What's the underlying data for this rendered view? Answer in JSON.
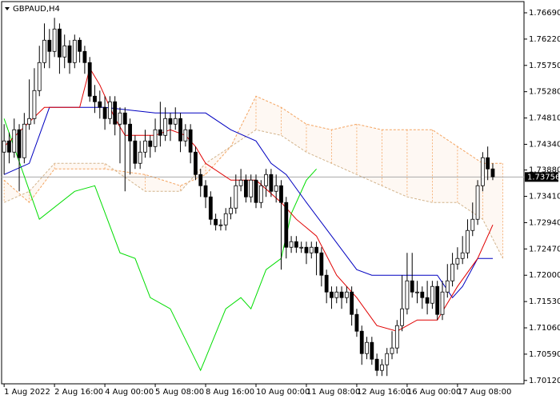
{
  "chart_data": {
    "type": "candlestick",
    "title": "GBPAUD,H4",
    "xlim": [
      -0.5,
      103.2
    ],
    "ylim": [
      1.7006,
      1.7689
    ],
    "yticks": [
      {
        "value": 1.7669,
        "label": "1.76690"
      },
      {
        "value": 1.7622,
        "label": "1.76220"
      },
      {
        "value": 1.7575,
        "label": "1.75750"
      },
      {
        "value": 1.7528,
        "label": "1.75280"
      },
      {
        "value": 1.7481,
        "label": "1.74810"
      },
      {
        "value": 1.7434,
        "label": "1.74340"
      },
      {
        "value": 1.7388,
        "label": "1.73880"
      },
      {
        "value": 1.7341,
        "label": "1.73410"
      },
      {
        "value": 1.7294,
        "label": "1.72940"
      },
      {
        "value": 1.7247,
        "label": "1.72470"
      },
      {
        "value": 1.72,
        "label": "1.72000"
      },
      {
        "value": 1.7153,
        "label": "1.71530"
      },
      {
        "value": 1.7106,
        "label": "1.71060"
      },
      {
        "value": 1.7059,
        "label": "1.70590"
      },
      {
        "value": 1.7012,
        "label": "1.70120"
      }
    ],
    "xticks": [
      {
        "value": 0,
        "label": "1 Aug 2022"
      },
      {
        "value": 10,
        "label": "2 Aug 16:00"
      },
      {
        "value": 20,
        "label": "4 Aug 00:00"
      },
      {
        "value": 30,
        "label": "5 Aug 08:00"
      },
      {
        "value": 40,
        "label": "8 Aug 16:00"
      },
      {
        "value": 50,
        "label": "10 Aug 00:00"
      },
      {
        "value": 60,
        "label": "11 Aug 08:00"
      },
      {
        "value": 70,
        "label": "12 Aug 16:00"
      },
      {
        "value": 80,
        "label": "16 Aug 00:00"
      },
      {
        "value": 90,
        "label": "17 Aug 08:00"
      }
    ],
    "last_price": {
      "value": 1.73756,
      "label": "1.73756"
    },
    "candles": {
      "open": [
        1.742,
        1.744,
        1.742,
        1.746,
        1.741,
        1.747,
        1.748,
        1.753,
        1.758,
        1.762,
        1.76,
        1.764,
        1.759,
        1.761,
        1.758,
        1.762,
        1.76,
        1.758,
        1.752,
        1.751,
        1.75,
        1.748,
        1.751,
        1.747,
        1.749,
        1.747,
        1.744,
        1.74,
        1.742,
        1.744,
        1.743,
        1.746,
        1.745,
        1.748,
        1.747,
        1.748,
        1.744,
        1.746,
        1.742,
        1.738,
        1.736,
        1.734,
        1.73,
        1.729,
        1.729,
        1.731,
        1.732,
        1.736,
        1.737,
        1.734,
        1.737,
        1.733,
        1.736,
        1.738,
        1.735,
        1.736,
        1.733,
        1.725,
        1.726,
        1.725,
        1.725,
        1.724,
        1.725,
        1.724,
        1.72,
        1.717,
        1.716,
        1.717,
        1.716,
        1.717,
        1.713,
        1.71,
        1.706,
        1.708,
        1.705,
        1.703,
        1.704,
        1.706,
        1.707,
        1.711,
        1.714,
        1.719,
        1.717,
        1.717,
        1.716,
        1.715,
        1.718,
        1.713,
        1.717,
        1.719,
        1.722,
        1.723,
        1.724,
        1.728,
        1.73,
        1.736,
        1.741,
        1.739
      ],
      "high": [
        1.747,
        1.7455,
        1.748,
        1.747,
        1.749,
        1.755,
        1.757,
        1.761,
        1.765,
        1.764,
        1.766,
        1.765,
        1.763,
        1.762,
        1.763,
        1.7625,
        1.761,
        1.759,
        1.754,
        1.753,
        1.752,
        1.752,
        1.752,
        1.75,
        1.75,
        1.748,
        1.745,
        1.744,
        1.746,
        1.745,
        1.748,
        1.751,
        1.75,
        1.749,
        1.75,
        1.749,
        1.747,
        1.747,
        1.743,
        1.739,
        1.737,
        1.735,
        1.731,
        1.73,
        1.732,
        1.734,
        1.738,
        1.739,
        1.738,
        1.738,
        1.738,
        1.737,
        1.739,
        1.739,
        1.738,
        1.737,
        1.734,
        1.727,
        1.727,
        1.726,
        1.726,
        1.726,
        1.726,
        1.725,
        1.721,
        1.718,
        1.718,
        1.718,
        1.718,
        1.718,
        1.714,
        1.711,
        1.709,
        1.709,
        1.706,
        1.705,
        1.707,
        1.71,
        1.712,
        1.72,
        1.724,
        1.724,
        1.719,
        1.718,
        1.719,
        1.719,
        1.719,
        1.719,
        1.722,
        1.724,
        1.725,
        1.727,
        1.73,
        1.733,
        1.737,
        1.742,
        1.743,
        1.74
      ],
      "low": [
        1.738,
        1.74,
        1.741,
        1.735,
        1.74,
        1.746,
        1.747,
        1.752,
        1.757,
        1.757,
        1.759,
        1.756,
        1.757,
        1.756,
        1.757,
        1.758,
        1.756,
        1.751,
        1.749,
        1.748,
        1.746,
        1.747,
        1.745,
        1.74,
        1.735,
        1.738,
        1.739,
        1.739,
        1.741,
        1.741,
        1.742,
        1.743,
        1.744,
        1.744,
        1.746,
        1.742,
        1.743,
        1.74,
        1.737,
        1.734,
        1.732,
        1.729,
        1.728,
        1.728,
        1.728,
        1.73,
        1.731,
        1.735,
        1.733,
        1.733,
        1.732,
        1.732,
        1.734,
        1.734,
        1.733,
        1.721,
        1.723,
        1.724,
        1.724,
        1.724,
        1.722,
        1.723,
        1.72,
        1.718,
        1.715,
        1.714,
        1.715,
        1.714,
        1.715,
        1.711,
        1.709,
        1.704,
        1.705,
        1.704,
        1.702,
        1.702,
        1.702,
        1.705,
        1.706,
        1.71,
        1.713,
        1.716,
        1.715,
        1.714,
        1.713,
        1.714,
        1.712,
        1.712,
        1.716,
        1.718,
        1.721,
        1.722,
        1.723,
        1.727,
        1.729,
        1.735,
        1.737,
        1.737
      ],
      "close": [
        1.744,
        1.742,
        1.746,
        1.741,
        1.747,
        1.748,
        1.753,
        1.758,
        1.762,
        1.76,
        1.764,
        1.759,
        1.761,
        1.758,
        1.762,
        1.76,
        1.758,
        1.752,
        1.751,
        1.75,
        1.748,
        1.751,
        1.747,
        1.749,
        1.747,
        1.744,
        1.74,
        1.742,
        1.744,
        1.743,
        1.746,
        1.745,
        1.748,
        1.747,
        1.748,
        1.744,
        1.746,
        1.742,
        1.738,
        1.736,
        1.734,
        1.73,
        1.729,
        1.729,
        1.731,
        1.732,
        1.736,
        1.737,
        1.734,
        1.737,
        1.733,
        1.736,
        1.738,
        1.735,
        1.736,
        1.733,
        1.725,
        1.726,
        1.725,
        1.725,
        1.724,
        1.725,
        1.724,
        1.72,
        1.717,
        1.716,
        1.717,
        1.716,
        1.717,
        1.713,
        1.71,
        1.706,
        1.708,
        1.705,
        1.703,
        1.704,
        1.706,
        1.707,
        1.711,
        1.714,
        1.719,
        1.717,
        1.717,
        1.716,
        1.715,
        1.718,
        1.713,
        1.717,
        1.719,
        1.722,
        1.723,
        1.724,
        1.728,
        1.73,
        1.736,
        1.741,
        1.739,
        1.7376
      ]
    },
    "tenkan": {
      "color": "#e00000",
      "x": [
        0,
        8,
        15,
        17,
        19,
        22,
        24,
        27,
        30,
        33,
        36,
        38,
        40,
        45,
        50,
        55,
        58,
        62,
        66,
        70,
        74,
        78,
        82,
        86,
        90,
        94,
        97
      ],
      "values": [
        1.743,
        1.75,
        1.75,
        1.757,
        1.754,
        1.748,
        1.745,
        1.745,
        1.745,
        1.746,
        1.745,
        1.743,
        1.74,
        1.737,
        1.737,
        1.733,
        1.73,
        1.727,
        1.72,
        1.716,
        1.711,
        1.71,
        1.712,
        1.712,
        1.718,
        1.723,
        1.729
      ]
    },
    "kijun": {
      "color": "#0000c0",
      "x": [
        0,
        5,
        9,
        20,
        30,
        40,
        45,
        50,
        53,
        56,
        60,
        65,
        70,
        73,
        80,
        86,
        89,
        91,
        94,
        97
      ],
      "values": [
        1.738,
        1.74,
        1.75,
        1.75,
        1.749,
        1.749,
        1.746,
        1.744,
        1.74,
        1.738,
        1.733,
        1.727,
        1.721,
        1.72,
        1.72,
        1.72,
        1.716,
        1.718,
        1.723,
        1.723
      ]
    },
    "chikou": {
      "color": "#00dd00",
      "x": [
        0,
        7,
        14,
        18,
        23,
        26,
        29,
        33,
        39,
        44,
        47,
        49,
        52,
        55,
        57,
        60,
        62
      ],
      "values": [
        1.748,
        1.73,
        1.735,
        1.736,
        1.724,
        1.723,
        1.716,
        1.714,
        1.703,
        1.714,
        1.716,
        1.714,
        1.721,
        1.723,
        1.731,
        1.737,
        1.739
      ]
    },
    "cloud": {
      "color_a": "#f4a460",
      "color_b": "#d2b48c",
      "x": [
        0,
        5,
        10,
        20,
        28,
        35,
        40,
        45,
        50,
        55,
        60,
        65,
        70,
        75,
        80,
        85,
        90,
        95,
        99
      ],
      "span_a": [
        1.737,
        1.733,
        1.739,
        1.739,
        1.738,
        1.736,
        1.738,
        1.743,
        1.752,
        1.75,
        1.747,
        1.746,
        1.747,
        1.746,
        1.746,
        1.746,
        1.743,
        1.74,
        1.74
      ],
      "span_b": [
        1.733,
        1.735,
        1.74,
        1.74,
        1.735,
        1.735,
        1.74,
        1.743,
        1.746,
        1.745,
        1.742,
        1.74,
        1.738,
        1.736,
        1.734,
        1.733,
        1.733,
        1.73,
        1.723
      ]
    }
  }
}
